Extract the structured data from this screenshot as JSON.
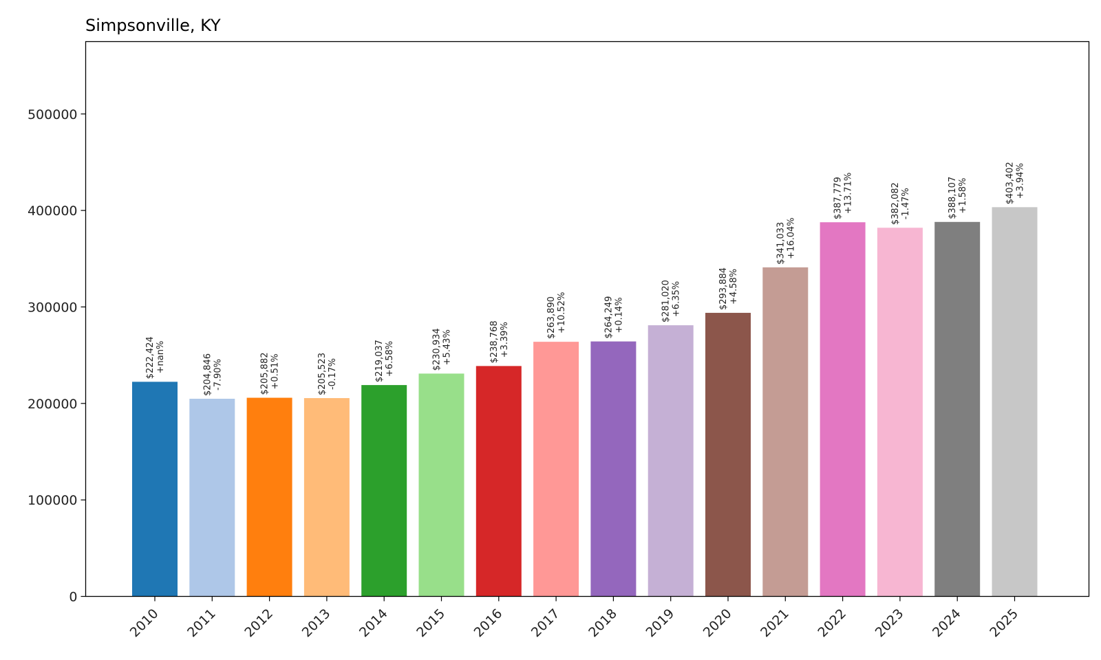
{
  "chart_data": {
    "type": "bar",
    "title": "Simpsonville, KY",
    "xlabel": "",
    "ylabel": "",
    "ylim": [
      0,
      575000
    ],
    "yticks": [
      0,
      100000,
      200000,
      300000,
      400000,
      500000
    ],
    "ytick_labels": [
      "0",
      "100000",
      "200000",
      "300000",
      "400000",
      "500000"
    ],
    "categories": [
      "2010",
      "2011",
      "2012",
      "2013",
      "2014",
      "2015",
      "2016",
      "2017",
      "2018",
      "2019",
      "2020",
      "2021",
      "2022",
      "2023",
      "2024",
      "2025"
    ],
    "values": [
      222424,
      204846,
      205882,
      205523,
      219037,
      230934,
      238768,
      263890,
      264249,
      281020,
      293884,
      341033,
      387779,
      382082,
      388107,
      403402
    ],
    "value_labels": [
      "$222,424",
      "$204,846",
      "$205,882",
      "$205,523",
      "$219,037",
      "$230,934",
      "$238,768",
      "$263,890",
      "$264,249",
      "$281,020",
      "$293,884",
      "$341,033",
      "$387,779",
      "$382,082",
      "$388,107",
      "$403,402"
    ],
    "change_labels": [
      "+nan%",
      "-7.90%",
      "+0.51%",
      "-0.17%",
      "+6.58%",
      "+5.43%",
      "+3.39%",
      "+10.52%",
      "+0.14%",
      "+6.35%",
      "+4.58%",
      "+16.04%",
      "+13.71%",
      "-1.47%",
      "+1.58%",
      "+3.94%"
    ],
    "colors": [
      "#1f77b4",
      "#aec7e8",
      "#ff7f0e",
      "#ffbb78",
      "#2ca02c",
      "#98df8a",
      "#d62728",
      "#ff9896",
      "#9467bd",
      "#c5b0d5",
      "#8c564b",
      "#c49c94",
      "#e377c2",
      "#f7b6d2",
      "#7f7f7f",
      "#c7c7c7"
    ],
    "grid": false,
    "legend": "none"
  }
}
